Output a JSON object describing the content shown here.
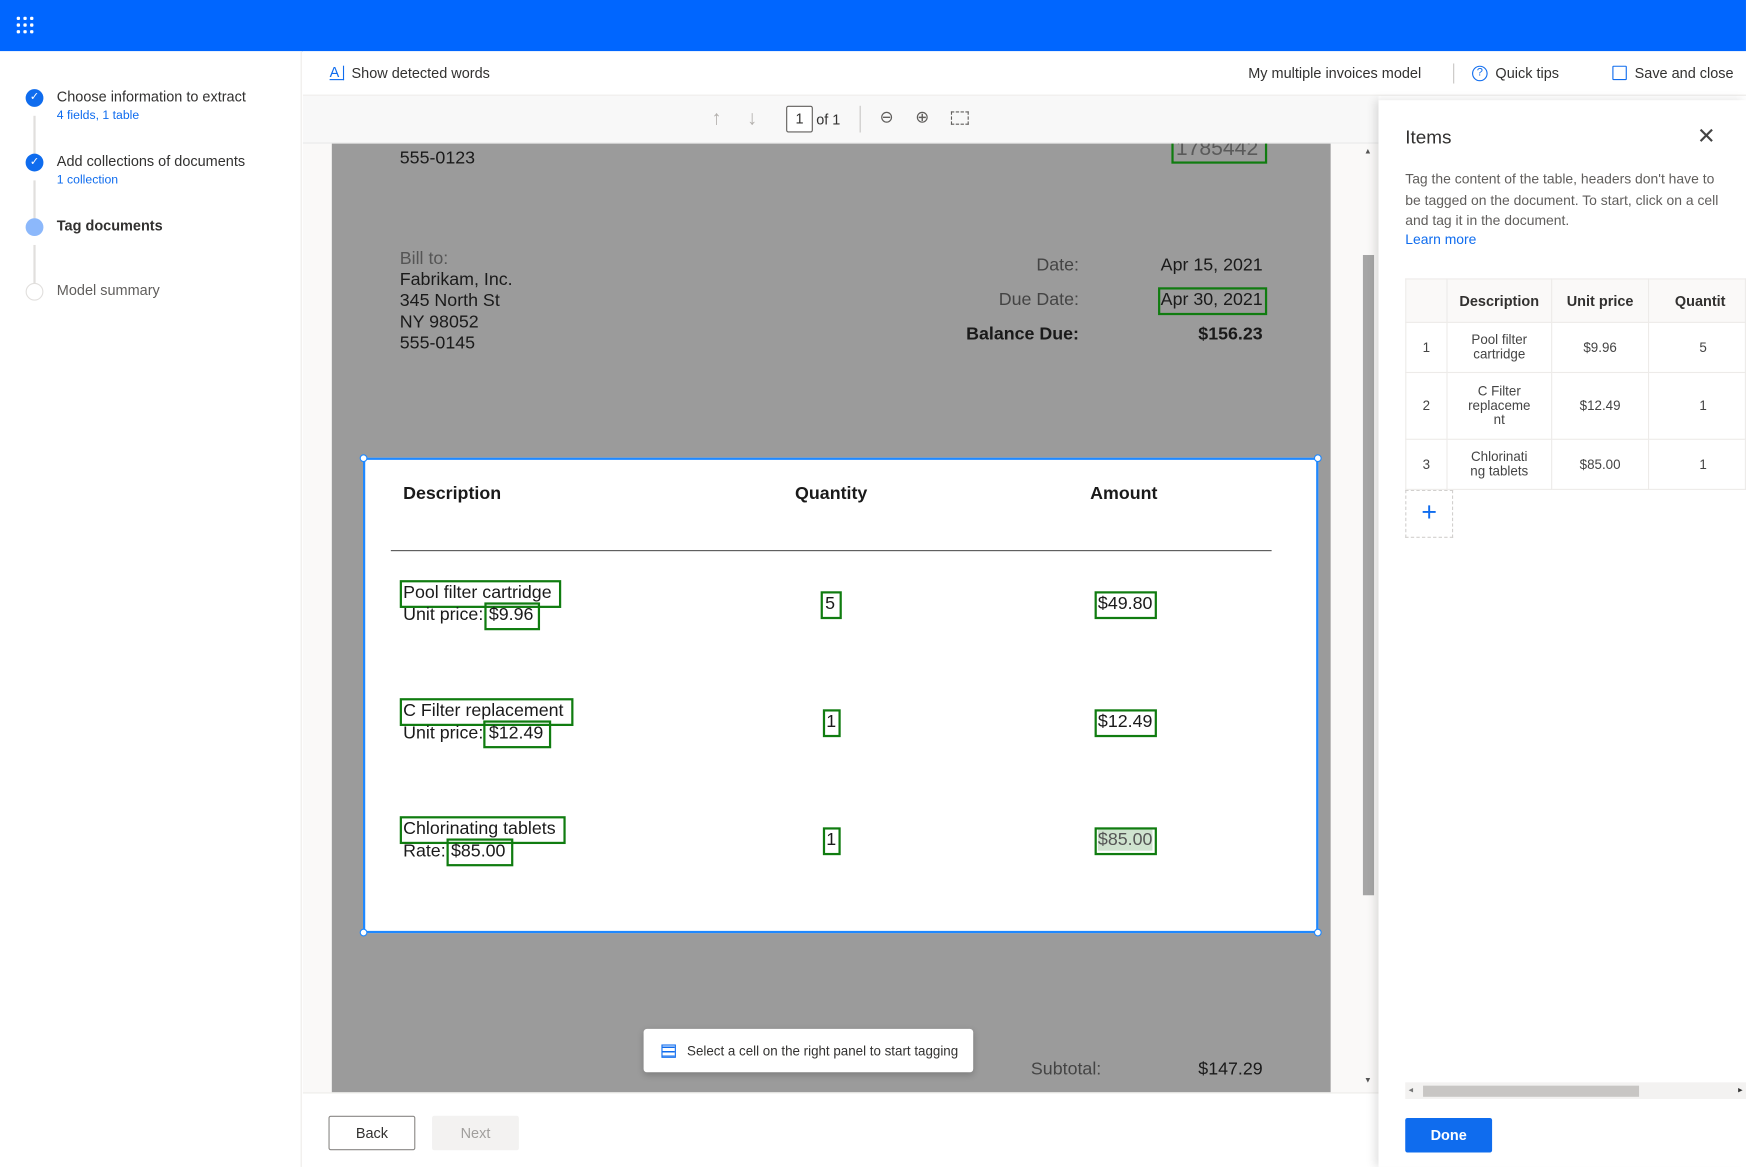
{
  "app": {
    "launcher_icon": "waffle-icon",
    "accent": "#0066ff"
  },
  "steps": [
    {
      "label": "Choose information to extract",
      "sub": "4 fields, 1 table",
      "state": "done"
    },
    {
      "label": "Add collections of documents",
      "sub": "1 collection",
      "state": "done"
    },
    {
      "label": "Tag documents",
      "state": "current"
    },
    {
      "label": "Model summary",
      "state": "todo"
    }
  ],
  "command_bar": {
    "show_words": "Show detected words",
    "model_name": "My multiple invoices model",
    "quick_tips": "Quick tips",
    "save_close": "Save and close"
  },
  "doc_toolbar": {
    "page_value": "1",
    "page_of": "of 1"
  },
  "document": {
    "phone_top": "555-0123",
    "invoice_no": "1785442",
    "bill_to": "Bill to:",
    "bill_lines": [
      "Fabrikam, Inc.",
      "345 North St",
      "NY 98052",
      "555-0145"
    ],
    "date_label": "Date:",
    "date": "Apr 15, 2021",
    "due_label": "Due Date:",
    "due": "Apr 30, 2021",
    "balance_label": "Balance Due:",
    "balance": "$156.23",
    "table_headers": [
      "Description",
      "Quantity",
      "Amount"
    ],
    "rows": [
      {
        "desc": "Pool filter cartridge",
        "price_label": "Unit price:",
        "price": "$9.96",
        "qty": "5",
        "amount": "$49.80"
      },
      {
        "desc": "C Filter replacement",
        "price_label": "Unit price:",
        "price": "$12.49",
        "qty": "1",
        "amount": "$12.49"
      },
      {
        "desc": "Chlorinating tablets",
        "price_label": "Rate:",
        "price": "$85.00",
        "qty": "1",
        "amount": "$85.00"
      }
    ],
    "subtotal_label": "Subtotal:",
    "subtotal": "$147.29"
  },
  "toast": "Select a cell on the right panel to start tagging",
  "footer": {
    "back": "Back",
    "next": "Next"
  },
  "panel": {
    "title": "Items",
    "desc": "Tag the content of the table, headers don't have to be tagged on the document. To start, click on a cell and tag it in the document.",
    "learn_more": "Learn more",
    "headers": [
      "",
      "Description",
      "Unit price",
      "Quantit"
    ],
    "rows": [
      {
        "n": "1",
        "desc": "Pool filter cartridge",
        "price": "$9.96",
        "qty": "5"
      },
      {
        "n": "2",
        "desc": "C Filter replaceme nt",
        "price": "$12.49",
        "qty": "1"
      },
      {
        "n": "3",
        "desc": "Chlorinati ng tablets",
        "price": "$85.00",
        "qty": "1"
      }
    ],
    "done": "Done"
  }
}
